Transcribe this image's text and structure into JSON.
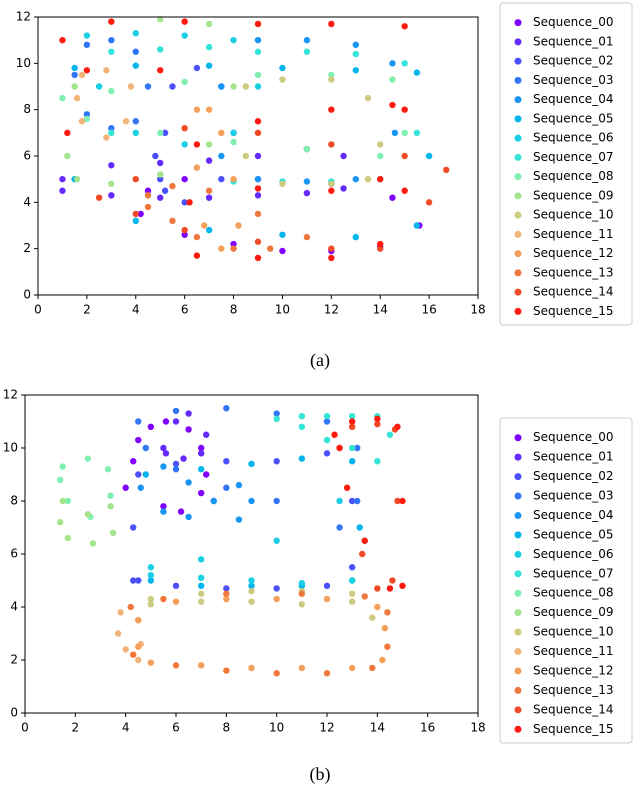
{
  "chart_data": [
    {
      "type": "scatter",
      "caption": "(a)",
      "xlim": [
        0,
        18
      ],
      "ylim": [
        0,
        12
      ],
      "xticks": [
        0,
        2,
        4,
        6,
        8,
        10,
        12,
        14,
        16,
        18
      ],
      "yticks": [
        0,
        2,
        4,
        6,
        8,
        10,
        12
      ],
      "series": [
        {
          "name": "Sequence_00",
          "color": "#8000ff",
          "x": [
            4.2,
            6,
            8,
            10,
            12,
            14,
            15.6,
            14.5,
            12,
            9,
            6,
            4.5
          ],
          "y": [
            3.5,
            2.6,
            2.2,
            1.9,
            1.9,
            2.1,
            3,
            4.2,
            4.8,
            5,
            5,
            4.5
          ]
        },
        {
          "name": "Sequence_01",
          "color": "#6629fe",
          "x": [
            1,
            3,
            5,
            7,
            9,
            11,
            12.5,
            12.5,
            11,
            9,
            7,
            5,
            3,
            1
          ],
          "y": [
            4.5,
            4.3,
            4.2,
            4.2,
            4.3,
            4.4,
            4.6,
            6,
            6.3,
            6,
            5.8,
            5.7,
            5.6,
            5
          ]
        },
        {
          "name": "Sequence_02",
          "color": "#4c50fc",
          "x": [
            5,
            5.2,
            5.5,
            6.5,
            7.5,
            8,
            7.5,
            6,
            5.2,
            4.8
          ],
          "y": [
            5,
            7,
            9,
            9.8,
            9,
            7,
            5,
            4,
            4.5,
            6
          ]
        },
        {
          "name": "Sequence_03",
          "color": "#3176f8",
          "x": [
            2,
            3,
            4,
            4.5,
            4,
            3,
            2,
            1.5
          ],
          "y": [
            10.8,
            11,
            10.5,
            9,
            7.5,
            7.2,
            7.8,
            9.5
          ]
        },
        {
          "name": "Sequence_04",
          "color": "#1996f3",
          "x": [
            9,
            11,
            13,
            14.5,
            14.6,
            13,
            11,
            9,
            7.5,
            7.5
          ],
          "y": [
            11,
            11,
            10.8,
            10,
            7,
            5,
            4.9,
            5,
            6,
            9
          ]
        },
        {
          "name": "Sequence_05",
          "color": "#00b5eb",
          "x": [
            1.5,
            4,
            7,
            10,
            13,
            15.5,
            16,
            15.5,
            13,
            10,
            7,
            4,
            1.5
          ],
          "y": [
            9.8,
            9.9,
            9.9,
            9.8,
            9.7,
            9.6,
            6,
            3,
            2.5,
            2.6,
            2.8,
            3.2,
            5
          ]
        },
        {
          "name": "Sequence_06",
          "color": "#1acfe3",
          "x": [
            2,
            4,
            6,
            8,
            9,
            8,
            6,
            4,
            2.5
          ],
          "y": [
            11.2,
            11.3,
            11.2,
            11,
            9,
            7,
            6.5,
            7,
            9
          ]
        },
        {
          "name": "Sequence_07",
          "color": "#33e4d7",
          "x": [
            3,
            5,
            7,
            9,
            11,
            13,
            15,
            15.5,
            14,
            12,
            10,
            8,
            5,
            3
          ],
          "y": [
            10.5,
            10.6,
            10.7,
            10.5,
            10.5,
            10.4,
            10,
            7,
            5,
            4.9,
            4.9,
            4.9,
            5.2,
            7
          ]
        },
        {
          "name": "Sequence_08",
          "color": "#80f0b0",
          "x": [
            1,
            3,
            6,
            9,
            12,
            14.5,
            15,
            14,
            11,
            8,
            5,
            2
          ],
          "y": [
            8.5,
            8.8,
            9.2,
            9.5,
            9.5,
            9.3,
            7,
            6,
            6.3,
            6.6,
            7,
            7.6
          ]
        },
        {
          "name": "Sequence_09",
          "color": "#a4e48c",
          "x": [
            1.2,
            1.5,
            3,
            5,
            7,
            8,
            7,
            5,
            3,
            1.6
          ],
          "y": [
            6,
            9,
            11.8,
            11.9,
            11.7,
            9,
            6.5,
            5.2,
            4.8,
            5
          ]
        },
        {
          "name": "Sequence_10",
          "color": "#cccc80",
          "x": [
            8.5,
            10,
            12,
            13.5,
            14,
            13.5,
            12,
            10,
            8.5
          ],
          "y": [
            9,
            9.3,
            9.3,
            8.5,
            6.5,
            5,
            4.8,
            4.8,
            6
          ]
        },
        {
          "name": "Sequence_11",
          "color": "#f0b478",
          "x": [
            1.8,
            2.8,
            3.8,
            3.6,
            2.8,
            1.8,
            1.6
          ],
          "y": [
            9.5,
            9.7,
            9,
            7.5,
            6.8,
            7.5,
            8.5
          ]
        },
        {
          "name": "Sequence_12",
          "color": "#f4a05a",
          "x": [
            6.5,
            7,
            7.5,
            8,
            8.2,
            7.5,
            6.8,
            6.5
          ],
          "y": [
            8,
            8,
            7,
            5,
            3,
            2,
            3,
            5.5
          ]
        },
        {
          "name": "Sequence_13",
          "color": "#f0783c",
          "x": [
            4.5,
            5.5,
            6.5,
            8,
            9.5,
            11,
            9,
            7,
            5.5,
            4.5
          ],
          "y": [
            3.8,
            3.2,
            2.5,
            2,
            2,
            2.5,
            3.5,
            4.5,
            4.7,
            4.3
          ]
        },
        {
          "name": "Sequence_14",
          "color": "#f04a26",
          "x": [
            2.5,
            4,
            6,
            9,
            12,
            14,
            16,
            16.7,
            15,
            12,
            9,
            6,
            4
          ],
          "y": [
            4.2,
            3.5,
            2.8,
            2.3,
            2,
            2,
            4,
            5.4,
            6,
            6.5,
            7,
            7.2,
            5
          ]
        },
        {
          "name": "Sequence_15",
          "color": "#ff1a10",
          "x": [
            1,
            1.2,
            3,
            6,
            9,
            12,
            15,
            15,
            15,
            14,
            12,
            9,
            6.5,
            6.2,
            6.5,
            9,
            12,
            14.5,
            14,
            12,
            9,
            5,
            2
          ],
          "y": [
            11,
            7,
            11.8,
            11.8,
            11.7,
            11.7,
            11.6,
            8,
            4.5,
            2.2,
            1.6,
            1.6,
            1.7,
            4,
            6.5,
            7.5,
            8,
            8.2,
            5,
            4.5,
            4.6,
            9.7,
            9.7
          ]
        }
      ]
    },
    {
      "type": "scatter",
      "caption": "(b)",
      "xlim": [
        0,
        18
      ],
      "ylim": [
        0,
        12
      ],
      "xticks": [
        0,
        2,
        4,
        6,
        8,
        10,
        12,
        14,
        16,
        18
      ],
      "yticks": [
        0,
        2,
        4,
        6,
        8,
        10,
        12
      ],
      "series": [
        {
          "name": "Sequence_00",
          "color": "#8000ff",
          "x": [
            4,
            4.3,
            4.5,
            5,
            5.6,
            6.5,
            7,
            7.2,
            7,
            6.2,
            5.5
          ],
          "y": [
            8.5,
            9.5,
            10.3,
            10.8,
            11,
            10.7,
            10,
            9,
            8.3,
            7.6,
            7.8
          ]
        },
        {
          "name": "Sequence_01",
          "color": "#6629fe",
          "x": [
            5.5,
            6,
            6.5,
            7.2,
            7,
            6.3,
            5.6
          ],
          "y": [
            10,
            11,
            11.3,
            10.5,
            9.8,
            9.6,
            9.8
          ]
        },
        {
          "name": "Sequence_02",
          "color": "#4c50fc",
          "x": [
            4.3,
            4.3,
            4.5,
            6,
            8,
            10,
            12,
            13,
            13,
            12,
            10,
            8,
            6,
            4.5
          ],
          "y": [
            5,
            7,
            9,
            9.4,
            9.5,
            9.5,
            9.8,
            8,
            5.5,
            4.8,
            4.7,
            4.7,
            4.8,
            5
          ]
        },
        {
          "name": "Sequence_03",
          "color": "#3176f8",
          "x": [
            4.5,
            6,
            8,
            10,
            12,
            13.2,
            13.2,
            12.5,
            10,
            8,
            6,
            4.8
          ],
          "y": [
            11,
            11.4,
            11.5,
            11.3,
            11,
            10,
            8,
            7,
            8,
            8.5,
            9.2,
            10
          ]
        },
        {
          "name": "Sequence_04",
          "color": "#1996f3",
          "x": [
            4.6,
            5.5,
            6.5,
            7.5,
            8.5,
            9,
            8.5,
            7.5,
            6.5,
            5.5
          ],
          "y": [
            8.5,
            9.3,
            8.7,
            8,
            8.6,
            8,
            7.3,
            8,
            7.4,
            7.6
          ]
        },
        {
          "name": "Sequence_05",
          "color": "#00b5eb",
          "x": [
            4.8,
            7,
            9,
            11,
            13,
            13.3,
            13,
            11,
            9,
            7,
            5
          ],
          "y": [
            9,
            9.2,
            9.4,
            9.6,
            9.5,
            7,
            5,
            4.8,
            4.8,
            4.8,
            5
          ]
        },
        {
          "name": "Sequence_06",
          "color": "#1acfe3",
          "x": [
            5,
            7,
            9,
            11,
            13,
            13.5,
            12.5,
            10,
            7,
            5
          ],
          "y": [
            5.2,
            5.1,
            5,
            4.9,
            5,
            6.5,
            8,
            6.5,
            5.8,
            5.5
          ]
        },
        {
          "name": "Sequence_07",
          "color": "#33e4d7",
          "x": [
            10,
            11,
            12,
            13,
            14,
            14.5,
            14,
            13,
            12,
            11
          ],
          "y": [
            11.1,
            11.2,
            11.2,
            11.2,
            11.2,
            10.5,
            9.5,
            10,
            10.3,
            10.8
          ]
        },
        {
          "name": "Sequence_08",
          "color": "#80f0b0",
          "x": [
            1.5,
            2.5,
            3.3,
            3.4,
            2.6,
            1.7,
            1.4
          ],
          "y": [
            9.3,
            9.6,
            9.2,
            8.2,
            7.4,
            8,
            8.8
          ]
        },
        {
          "name": "Sequence_09",
          "color": "#a4e48c",
          "x": [
            1.5,
            2.5,
            3.4,
            3.5,
            2.7,
            1.7,
            1.4
          ],
          "y": [
            8,
            7.5,
            7.8,
            6.8,
            6.4,
            6.6,
            7.2
          ]
        },
        {
          "name": "Sequence_10",
          "color": "#cccc80",
          "x": [
            5,
            7,
            9,
            11,
            13,
            13.8,
            13,
            11,
            9,
            7,
            5
          ],
          "y": [
            4.1,
            4.2,
            4.2,
            4.1,
            4.2,
            3.6,
            4.5,
            4.6,
            4.6,
            4.5,
            4.3
          ]
        },
        {
          "name": "Sequence_11",
          "color": "#f0b478",
          "x": [
            3.8,
            4.5,
            4.6,
            4.5,
            4,
            3.7
          ],
          "y": [
            3.8,
            3.5,
            2.6,
            2,
            2.4,
            3
          ]
        },
        {
          "name": "Sequence_12",
          "color": "#f4a05a",
          "x": [
            4.5,
            5,
            7,
            9,
            11,
            13,
            14.2,
            14.3,
            14,
            12,
            10,
            8,
            6,
            4.5
          ],
          "y": [
            2.5,
            1.9,
            1.8,
            1.7,
            1.7,
            1.7,
            2,
            3.2,
            4,
            4.3,
            4.3,
            4.3,
            4.2,
            3.5
          ]
        },
        {
          "name": "Sequence_13",
          "color": "#f0783c",
          "x": [
            4.2,
            4.3,
            6,
            8,
            10,
            12,
            13.8,
            14.4,
            14.4,
            13.5,
            11,
            8,
            5.5
          ],
          "y": [
            4,
            2.2,
            1.8,
            1.6,
            1.5,
            1.5,
            1.7,
            2.5,
            3.8,
            4.4,
            4.5,
            4.5,
            4.3
          ]
        },
        {
          "name": "Sequence_14",
          "color": "#f04a26",
          "x": [
            12.5,
            13,
            14,
            14.7,
            14.8,
            14.6,
            14,
            13.4
          ],
          "y": [
            10,
            10.8,
            10.9,
            10.7,
            8,
            5,
            4.7,
            6
          ]
        },
        {
          "name": "Sequence_15",
          "color": "#ff1a10",
          "x": [
            12.3,
            13,
            14,
            14.8,
            15,
            15,
            14.5,
            13.5,
            12.8,
            12.5
          ],
          "y": [
            10.5,
            11,
            11.1,
            10.8,
            8,
            4.8,
            4.7,
            6.5,
            8.5,
            10
          ]
        }
      ]
    }
  ]
}
